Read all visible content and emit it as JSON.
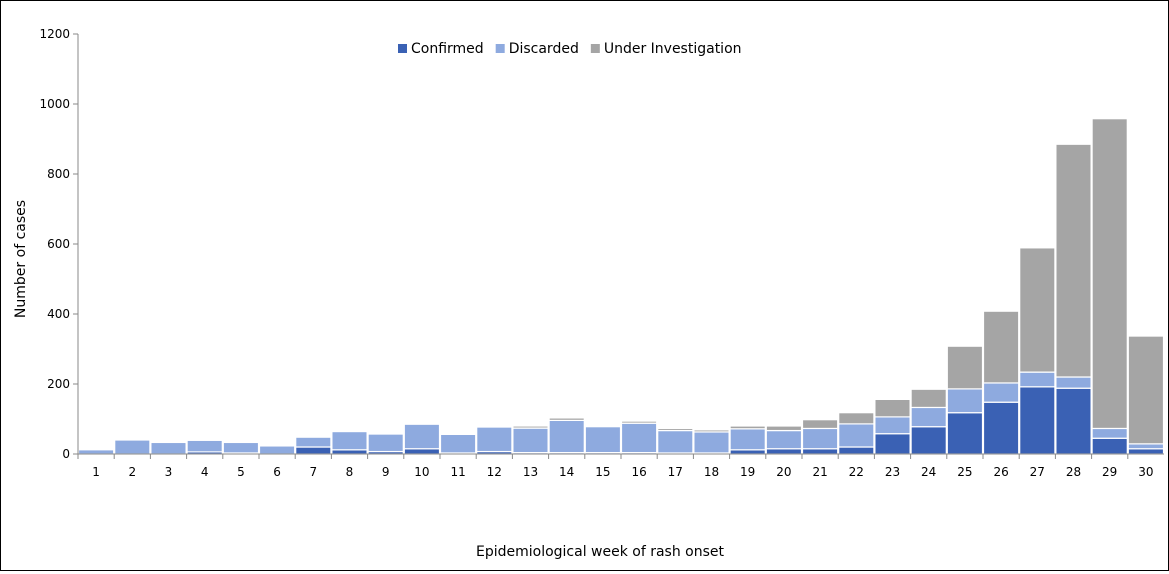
{
  "chart_data": {
    "type": "bar",
    "stacked": true,
    "xlabel": "Epidemiological week of rash onset",
    "ylabel": "Number of cases",
    "ylim": [
      0,
      1200
    ],
    "yticks": [
      0,
      200,
      400,
      600,
      800,
      1000,
      1200
    ],
    "grid": false,
    "legend_position": "top-center",
    "categories": [
      "1",
      "2",
      "3",
      "4",
      "5",
      "6",
      "7",
      "8",
      "9",
      "10",
      "11",
      "12",
      "13",
      "14",
      "15",
      "16",
      "17",
      "18",
      "19",
      "20",
      "21",
      "22",
      "23",
      "24",
      "25",
      "26",
      "27",
      "28",
      "29",
      "30"
    ],
    "series": [
      {
        "name": "Confirmed",
        "color": "#3a61b4",
        "values": [
          0,
          0,
          0,
          6,
          3,
          0,
          20,
          12,
          7,
          15,
          3,
          7,
          4,
          4,
          4,
          4,
          3,
          3,
          12,
          15,
          15,
          20,
          58,
          78,
          118,
          148,
          192,
          188,
          45,
          15
        ]
      },
      {
        "name": "Discarded",
        "color": "#8eaadf",
        "values": [
          12,
          40,
          33,
          33,
          30,
          23,
          28,
          52,
          50,
          70,
          53,
          70,
          70,
          92,
          74,
          84,
          64,
          60,
          60,
          52,
          58,
          66,
          48,
          55,
          68,
          55,
          42,
          32,
          28,
          14
        ]
      },
      {
        "name": "Under Investigation",
        "color": "#a5a5a5",
        "values": [
          0,
          0,
          0,
          0,
          0,
          0,
          0,
          0,
          0,
          0,
          0,
          0,
          6,
          7,
          0,
          6,
          6,
          6,
          8,
          13,
          25,
          32,
          50,
          52,
          122,
          205,
          355,
          665,
          885,
          308
        ]
      }
    ]
  }
}
